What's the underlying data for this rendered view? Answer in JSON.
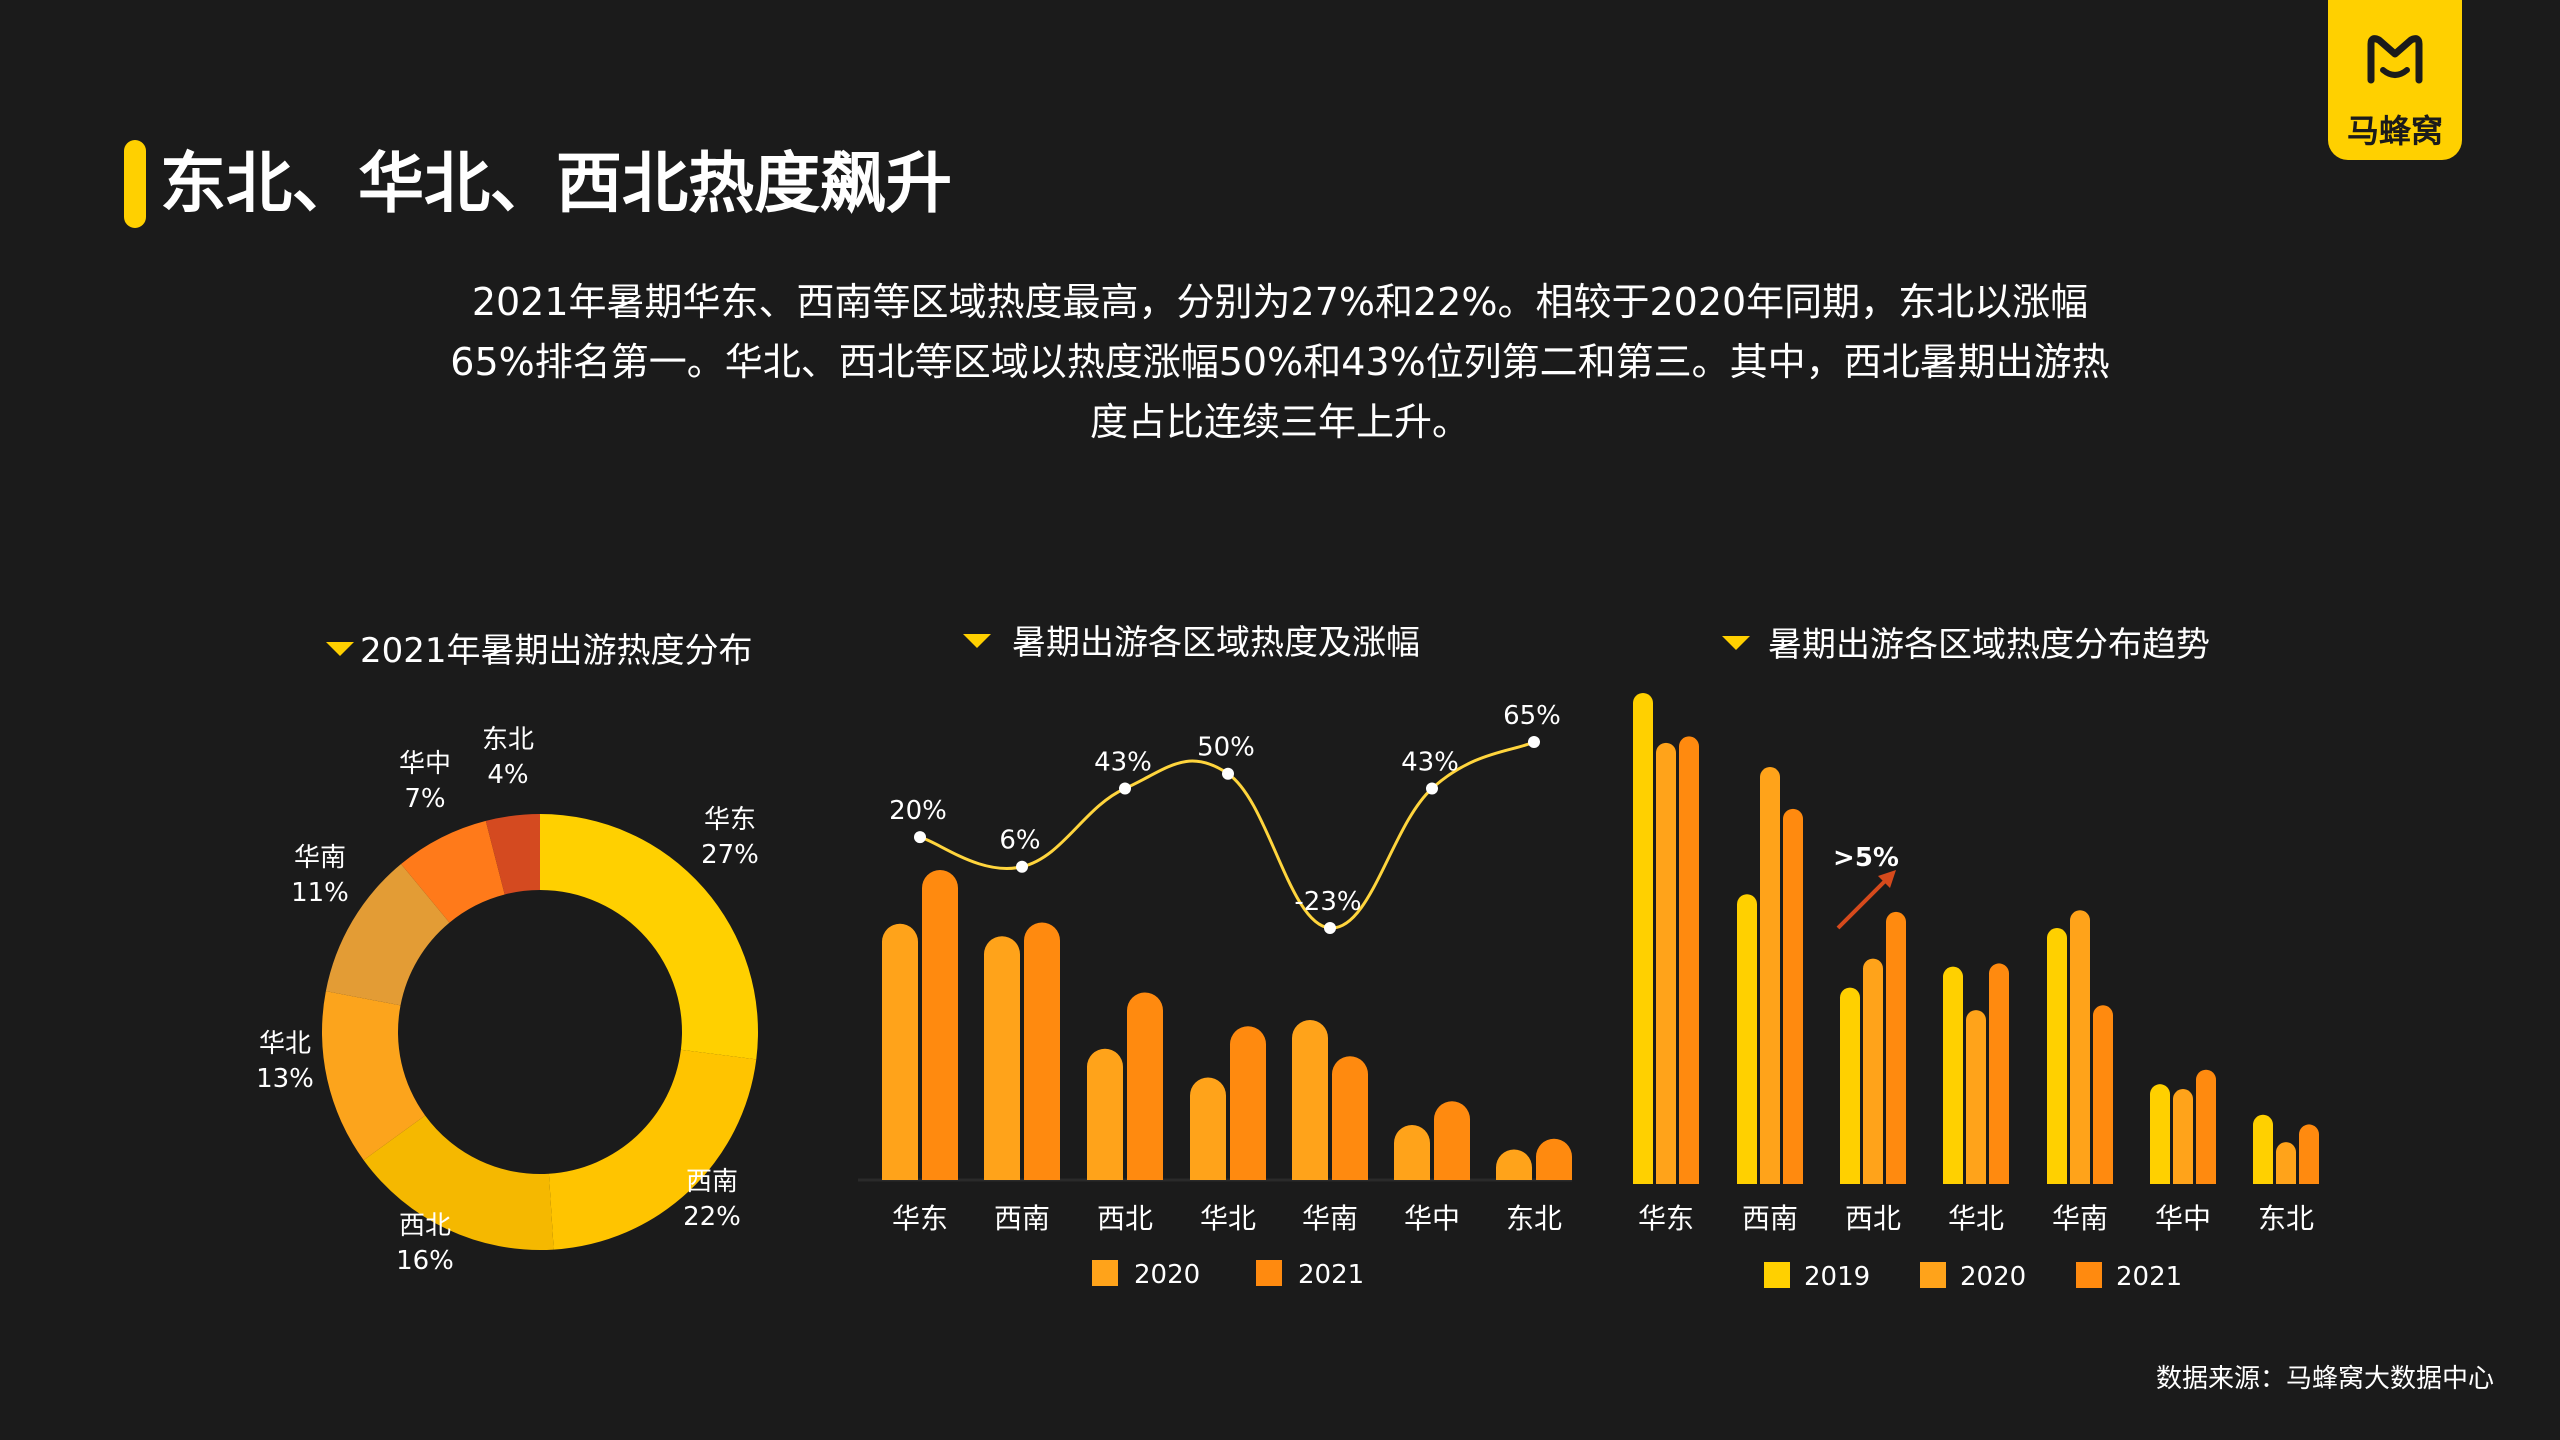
{
  "header": {
    "title": "东北、华北、西北热度飙升",
    "intro": "2021年暑期华东、西南等区域热度最高，分别为27%和22%。相较于2020年同期，东北以涨幅65%排名第一。华北、西北等区域以热度涨幅50%和43%位列第二和第三。其中，西北暑期出游热度占比连续三年上升。"
  },
  "logo": {
    "text": "马蜂窝",
    "icon": "mafengwo-m-icon",
    "bg_color": "#ffd000"
  },
  "source": "数据来源：马蜂窝大数据中心",
  "colors": {
    "y2019": "#ffd000",
    "y2020": "#ffa31a",
    "y2021": "#ff8a0f",
    "line": "#ffd53d"
  },
  "chart_data": [
    {
      "type": "pie",
      "title": "2021年暑期出游热度分布",
      "donut": true,
      "slices": [
        {
          "label": "华东",
          "value": 27,
          "value_label": "27%",
          "color": "#ffd000"
        },
        {
          "label": "西南",
          "value": 22,
          "value_label": "22%",
          "color": "#ffc400"
        },
        {
          "label": "西北",
          "value": 16,
          "value_label": "16%",
          "color": "#f5b800"
        },
        {
          "label": "华北",
          "value": 13,
          "value_label": "13%",
          "color": "#fca41c"
        },
        {
          "label": "华南",
          "value": 11,
          "value_label": "11%",
          "color": "#e39c35"
        },
        {
          "label": "华中",
          "value": 7,
          "value_label": "7%",
          "color": "#ff7a1a"
        },
        {
          "label": "东北",
          "value": 4,
          "value_label": "4%",
          "color": "#d44a20"
        }
      ]
    },
    {
      "type": "bar",
      "title": "暑期出游各区域热度及涨幅",
      "categories": [
        "华东",
        "西南",
        "西北",
        "华北",
        "华南",
        "华中",
        "东北"
      ],
      "series": [
        {
          "name": "2020",
          "values": [
            20.5,
            19.5,
            10.5,
            8.2,
            12.8,
            4.4,
            2.0
          ]
        },
        {
          "name": "2021",
          "values": [
            24.8,
            20.6,
            15.0,
            12.3,
            9.9,
            6.3,
            3.3
          ]
        }
      ],
      "growth": {
        "type": "line",
        "values": [
          20,
          6,
          43,
          50,
          -23,
          43,
          65
        ],
        "labels": [
          "20%",
          "6%",
          "43%",
          "50%",
          "-23%",
          "43%",
          "65%"
        ]
      },
      "ylim": [
        0,
        30
      ]
    },
    {
      "type": "bar",
      "title": "暑期出游各区域热度分布趋势",
      "categories": [
        "华东",
        "西南",
        "西北",
        "华北",
        "华南",
        "华中",
        "东北"
      ],
      "series": [
        {
          "name": "2019",
          "values": [
            30.5,
            18.0,
            12.2,
            13.5,
            15.9,
            6.2,
            4.3
          ]
        },
        {
          "name": "2020",
          "values": [
            27.4,
            25.9,
            14.0,
            10.8,
            17.0,
            5.9,
            2.6
          ]
        },
        {
          "name": "2021",
          "values": [
            27.8,
            23.3,
            16.9,
            13.7,
            11.1,
            7.1,
            3.7
          ]
        }
      ],
      "annotation": ">5%",
      "ylim": [
        0,
        31
      ]
    }
  ]
}
